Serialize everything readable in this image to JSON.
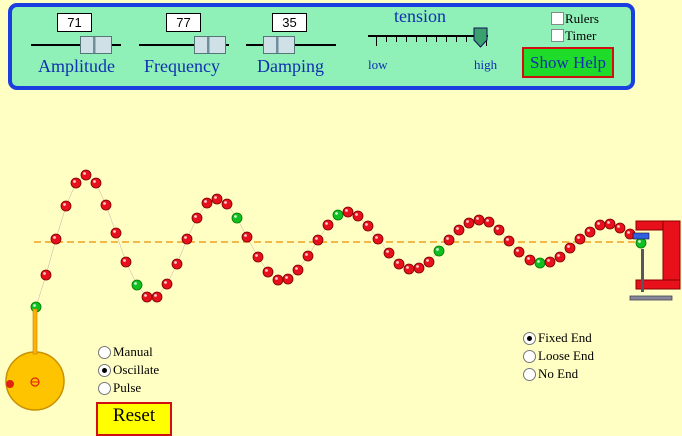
{
  "controls": {
    "amplitude": {
      "value": "71",
      "label": "Amplitude"
    },
    "frequency": {
      "value": "77",
      "label": "Frequency"
    },
    "damping": {
      "value": "35",
      "label": "Damping"
    },
    "tension": {
      "title": "tension",
      "low_label": "low",
      "high_label": "high",
      "level": 0.93
    },
    "rulers_label": "Rulers",
    "timer_label": "Timer",
    "help_label": "Show Help"
  },
  "modes": {
    "items": [
      {
        "label": "Manual",
        "selected": false
      },
      {
        "label": "Oscillate",
        "selected": true
      },
      {
        "label": "Pulse",
        "selected": false
      }
    ]
  },
  "end_types": {
    "items": [
      {
        "label": "Fixed End",
        "selected": true
      },
      {
        "label": "Loose End",
        "selected": false
      },
      {
        "label": "No End",
        "selected": false
      }
    ]
  },
  "reset_label": "Reset",
  "colors": {
    "bead": "#e8101a",
    "bead_green": "#10c020",
    "equilibrium_line": "#f0a020",
    "clamp": "#e8101a",
    "wheel": "#ffc400"
  }
}
